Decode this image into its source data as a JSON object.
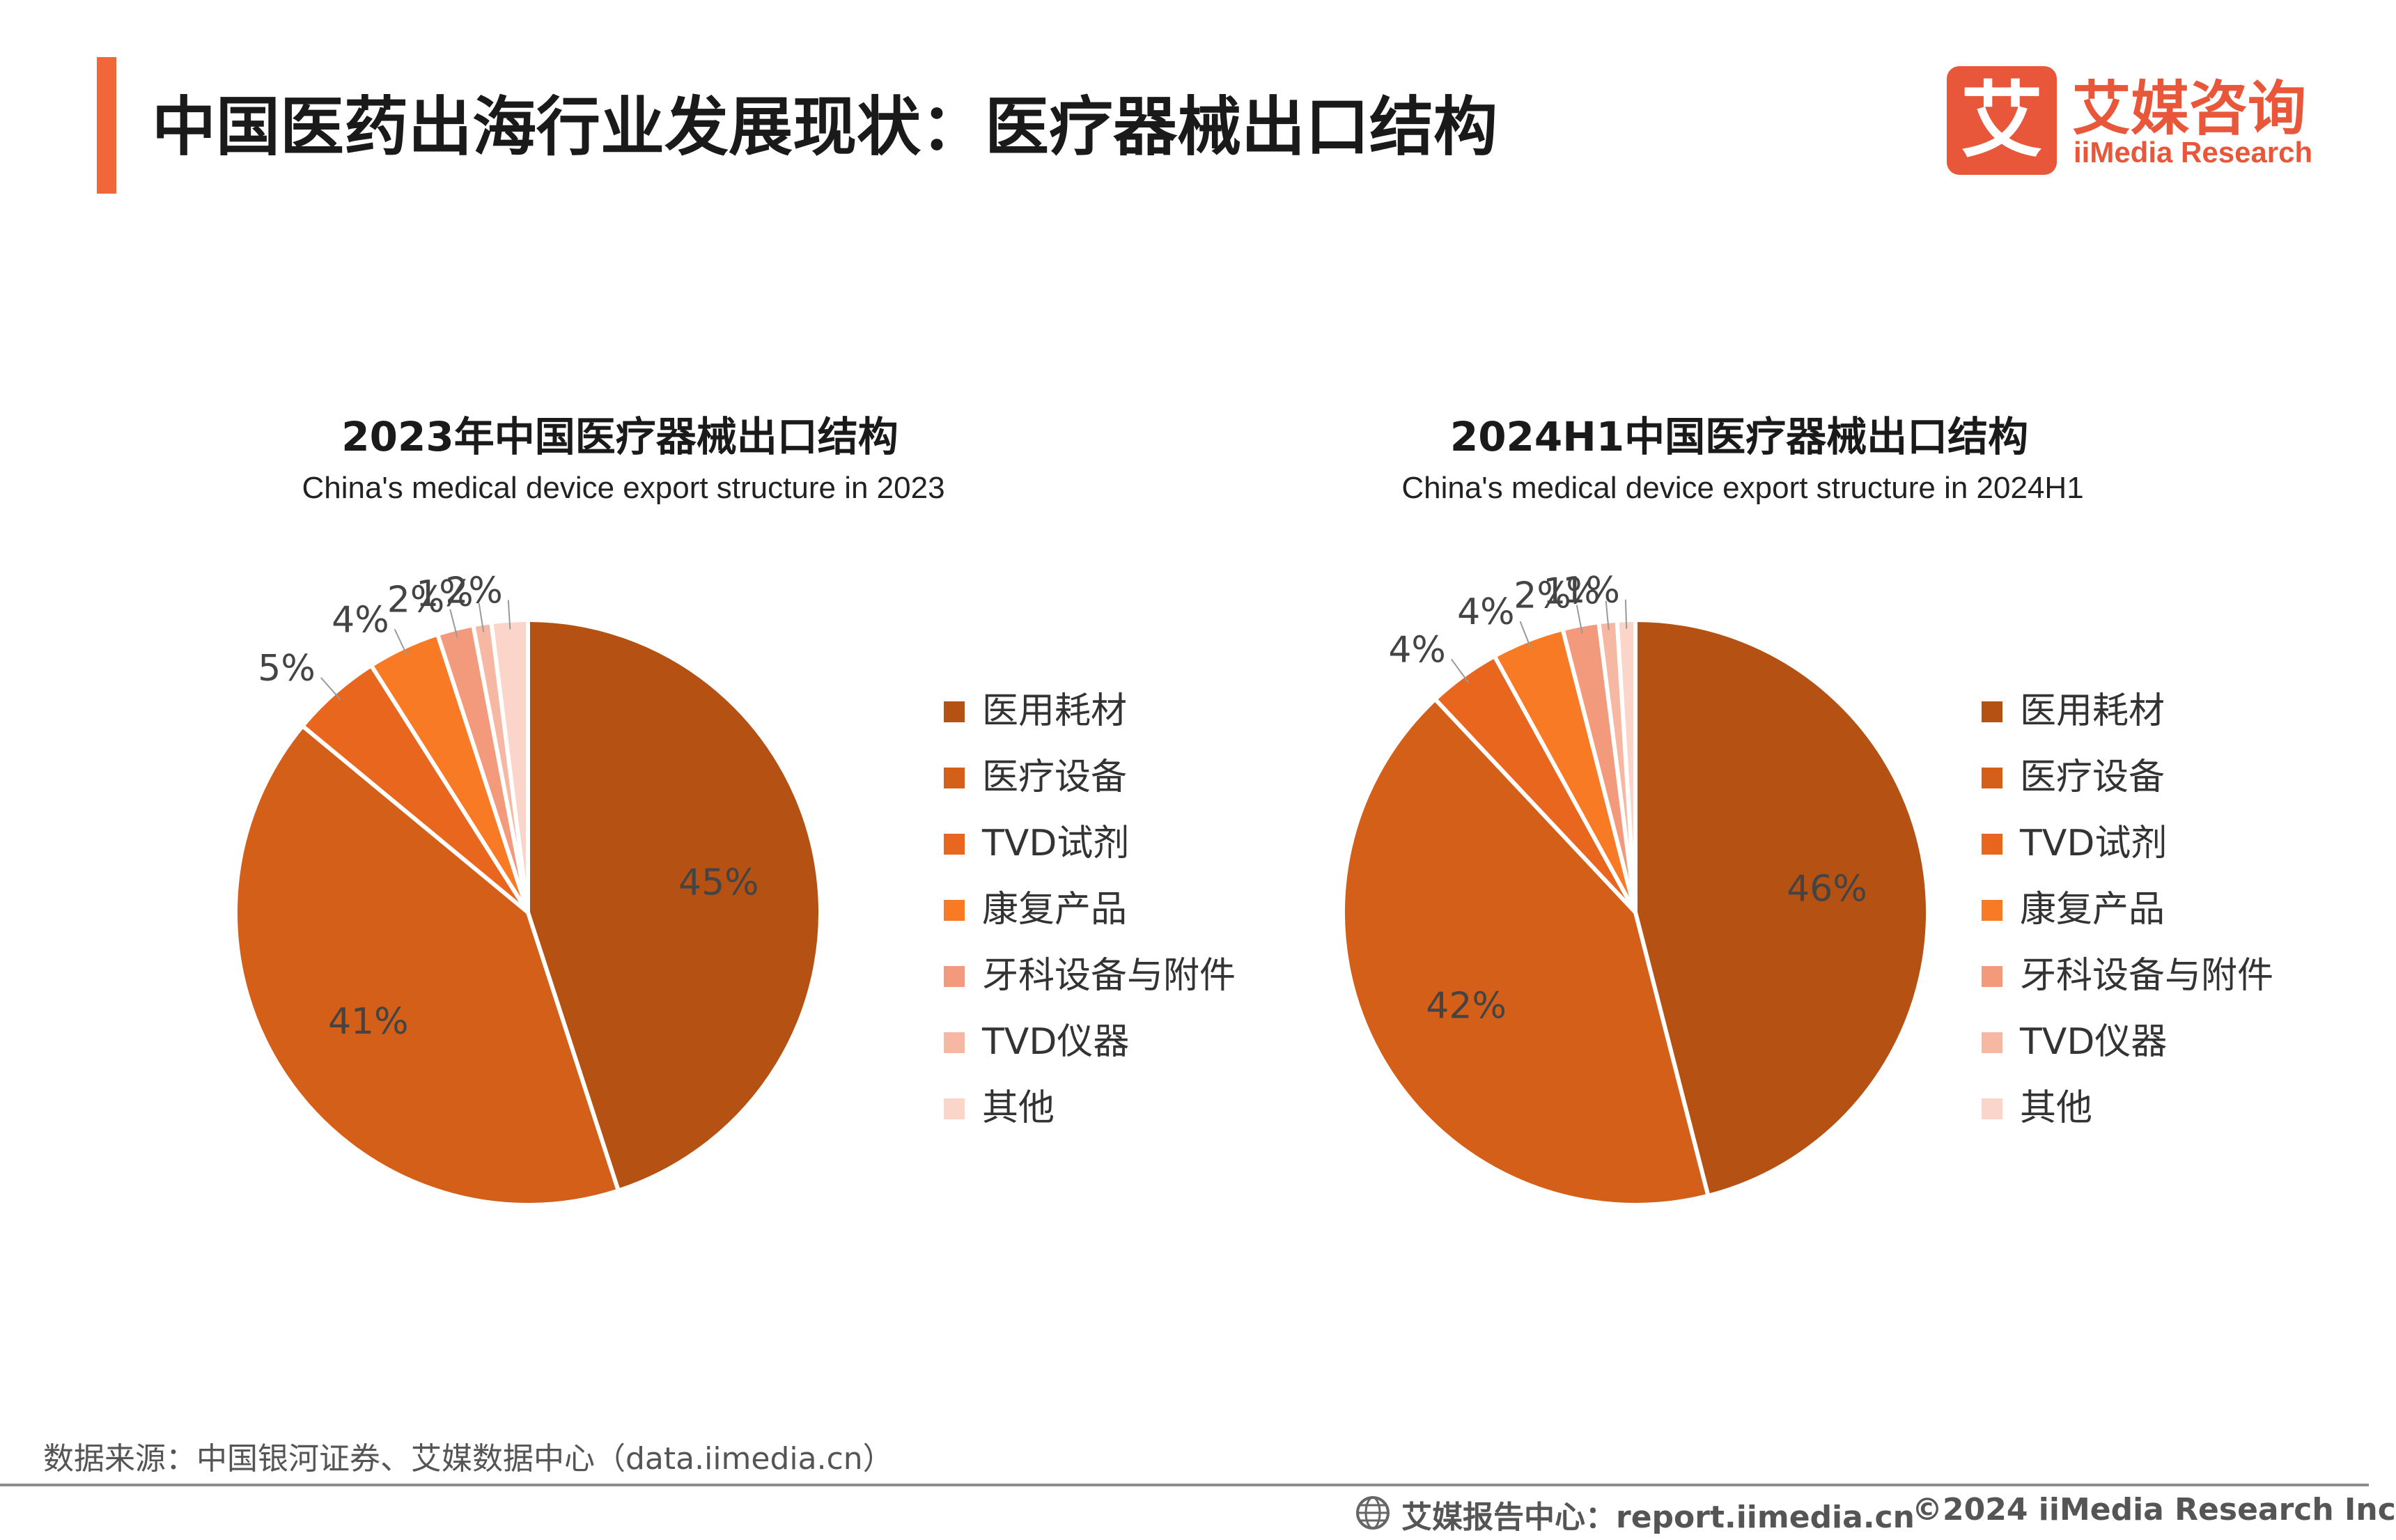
{
  "header": {
    "title": "中国医药出海行业发展现状：医疗器械出口结构",
    "accent_color": "#f2673a"
  },
  "logo": {
    "mark": "艾",
    "cn": "艾媒咨询",
    "en": "iiMedia Research",
    "color": "#e9573a"
  },
  "chart_data": [
    {
      "type": "pie",
      "title": "2023年中国医疗器械出口结构",
      "subtitle": "China's medical device export structure in 2023",
      "categories": [
        "医用耗材",
        "医疗设备",
        "TVD试剂",
        "康复产品",
        "牙科设备与附件",
        "TVD仪器",
        "其他"
      ],
      "values": [
        45,
        41,
        5,
        4,
        2,
        1,
        2
      ],
      "labels": [
        "45%",
        "41%",
        "5%",
        "4%",
        "2%",
        "1%",
        "2%"
      ],
      "colors": [
        "#b55113",
        "#d45f18",
        "#e8661e",
        "#f97a24",
        "#f49a7c",
        "#f7b8a3",
        "#fbd4ca"
      ],
      "legend_position": "right"
    },
    {
      "type": "pie",
      "title": "2024H1中国医疗器械出口结构",
      "subtitle": "China's medical device export structure in 2024H1",
      "categories": [
        "医用耗材",
        "医疗设备",
        "TVD试剂",
        "康复产品",
        "牙科设备与附件",
        "TVD仪器",
        "其他"
      ],
      "values": [
        46,
        42,
        4,
        4,
        2,
        1,
        1
      ],
      "labels": [
        "46%",
        "42%",
        "4%",
        "4%",
        "2%",
        "1%",
        "1%"
      ],
      "colors": [
        "#b55113",
        "#d45f18",
        "#e8661e",
        "#f97a24",
        "#f49a7c",
        "#f7b8a3",
        "#fbd4ca"
      ],
      "legend_position": "right"
    }
  ],
  "footer": {
    "source": "数据来源：中国银河证券、艾媒数据中心（data.iimedia.cn）",
    "report": "艾媒报告中心：report.iimedia.cn",
    "copyright": "©2024  iiMedia Research  Inc"
  }
}
